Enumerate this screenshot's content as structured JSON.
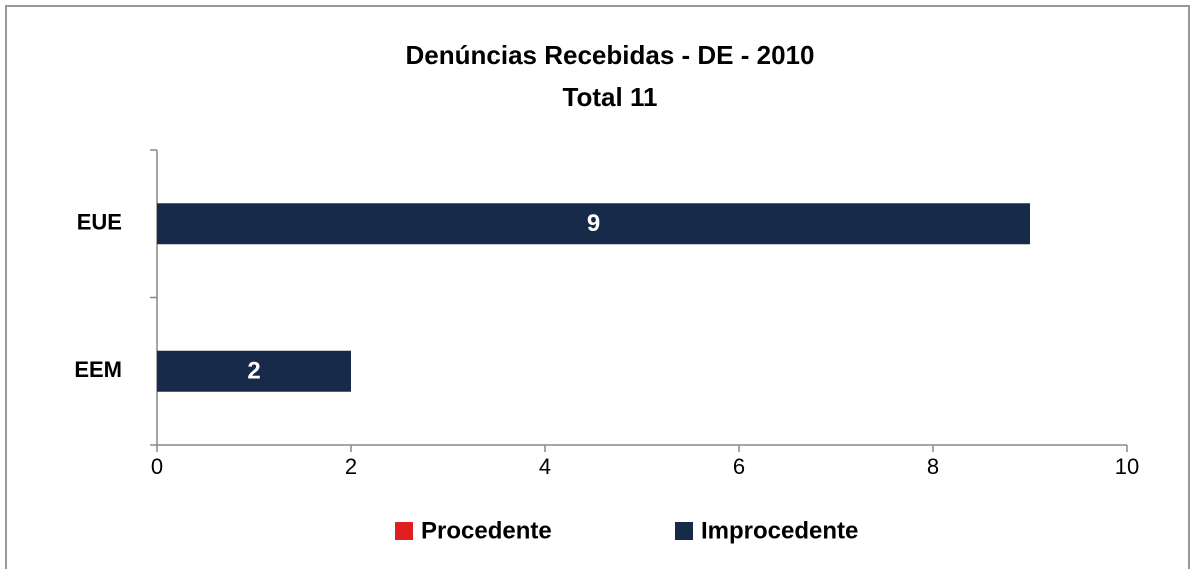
{
  "chart_data": {
    "type": "stacked-bar-horizontal",
    "title": "Denúncias Recebidas - DE - 2010",
    "subtitle": "Total 11",
    "categories": [
      "EUE",
      "EEM"
    ],
    "series": [
      {
        "name": "Procedente",
        "color": "#e02020",
        "values": [
          0,
          0
        ]
      },
      {
        "name": "Improcedente",
        "color": "#172a4a",
        "values": [
          9,
          2
        ]
      }
    ],
    "xlim": [
      0,
      10
    ],
    "xticks": [
      0,
      2,
      4,
      6,
      8,
      10
    ],
    "legend": "bottom"
  }
}
